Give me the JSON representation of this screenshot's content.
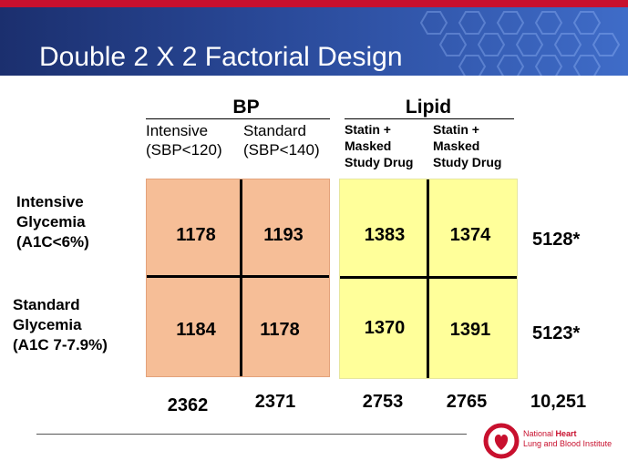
{
  "title": "Double 2 X 2 Factorial Design",
  "bp": {
    "label": "BP",
    "cols": [
      {
        "line1": "Intensive",
        "line2": "(SBP<120)"
      },
      {
        "line1": "Standard",
        "line2": "(SBP<140)"
      }
    ],
    "cells": [
      [
        "1178",
        "1193"
      ],
      [
        "1184",
        "1178"
      ]
    ],
    "totals": [
      "2362",
      "2371"
    ]
  },
  "lipid": {
    "label": "Lipid",
    "cols": [
      {
        "line1": "Statin +",
        "line2": "Masked",
        "line3": "Study Drug"
      },
      {
        "line1": "Statin +",
        "line2": "Masked",
        "line3": "Study Drug"
      }
    ],
    "cells": [
      [
        "1383",
        "1374"
      ],
      [
        "1370",
        "1391"
      ]
    ],
    "totals": [
      "2753",
      "2765"
    ]
  },
  "rows": [
    {
      "line1": "Intensive",
      "line2": "Glycemia",
      "line3": "(A1C<6%)",
      "total": "5128*"
    },
    {
      "line1": "Standard",
      "line2": "Glycemia",
      "line3": "(A1C 7-7.9%)",
      "total": "5123*"
    }
  ],
  "grand_total": "10,251",
  "logo": {
    "line1": "National",
    "line1_bold": "Heart",
    "line2": "Lung and Blood Institute"
  },
  "colors": {
    "header": "#2a4a9a",
    "red_strip": "#c8102e",
    "bp_fill": "#f6be97",
    "lipid_fill": "#ffff9a"
  }
}
